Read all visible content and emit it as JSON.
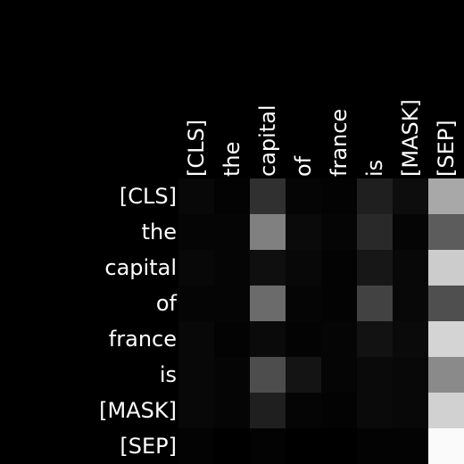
{
  "chart_data": {
    "type": "heatmap",
    "colormap": "grayscale",
    "background": "#000000",
    "label_color": "#ffffff",
    "x_tokens": [
      "[CLS]",
      "the",
      "capital",
      "of",
      "france",
      "is",
      "[MASK]",
      "[SEP]"
    ],
    "y_tokens": [
      "[CLS]",
      "the",
      "capital",
      "of",
      "france",
      "is",
      "[MASK]",
      "[SEP]"
    ],
    "value_range": [
      0,
      1
    ],
    "values": [
      [
        0.03,
        0.01,
        0.19,
        0.02,
        0.01,
        0.12,
        0.05,
        0.66
      ],
      [
        0.02,
        0.02,
        0.5,
        0.04,
        0.02,
        0.16,
        0.02,
        0.36
      ],
      [
        0.03,
        0.02,
        0.06,
        0.03,
        0.01,
        0.09,
        0.03,
        0.8
      ],
      [
        0.02,
        0.02,
        0.42,
        0.02,
        0.01,
        0.26,
        0.03,
        0.31
      ],
      [
        0.03,
        0.01,
        0.04,
        0.01,
        0.02,
        0.07,
        0.04,
        0.83
      ],
      [
        0.03,
        0.02,
        0.3,
        0.08,
        0.02,
        0.04,
        0.03,
        0.54
      ],
      [
        0.03,
        0.02,
        0.12,
        0.02,
        0.01,
        0.04,
        0.03,
        0.82
      ],
      [
        0.01,
        0.0,
        0.01,
        0.0,
        0.0,
        0.01,
        0.01,
        0.98
      ]
    ]
  }
}
